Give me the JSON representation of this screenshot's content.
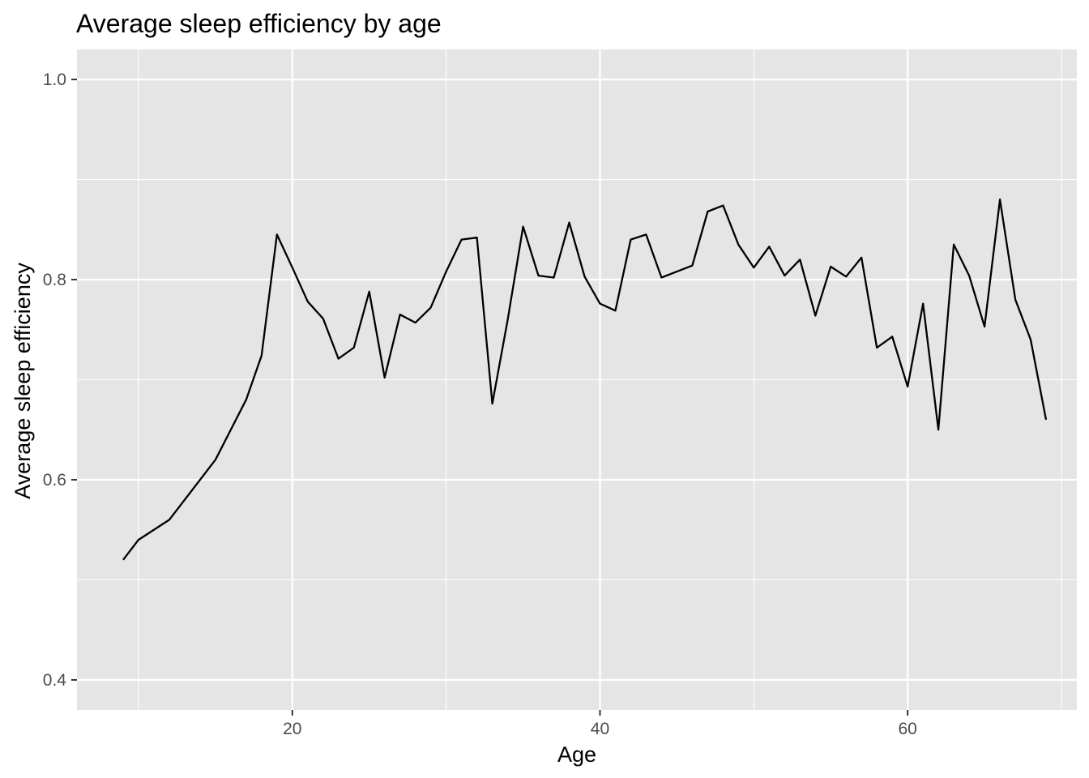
{
  "chart_data": {
    "type": "line",
    "title": "Average sleep efficiency by age",
    "xlabel": "Age",
    "ylabel": "Average sleep efficiency",
    "xlim": [
      6,
      71
    ],
    "ylim": [
      0.37,
      1.03
    ],
    "x_ticks": [
      20,
      40,
      60
    ],
    "x_tick_labels": [
      "20",
      "40",
      "60"
    ],
    "x_minor_ticks": [
      10,
      30,
      50,
      70
    ],
    "y_ticks": [
      0.4,
      0.6,
      0.8,
      1.0
    ],
    "y_tick_labels": [
      "0.4",
      "0.6",
      "0.8",
      "1.0"
    ],
    "y_minor_ticks": [
      0.5,
      0.7,
      0.9
    ],
    "grid": true,
    "legend": "none",
    "colors": {
      "panel": "#e5e5e5",
      "grid": "#ffffff",
      "line": "#000000"
    },
    "series": [
      {
        "x": [
          9,
          10,
          12,
          15,
          17,
          18,
          19,
          20,
          21,
          22,
          23,
          24,
          25,
          26,
          27,
          28,
          29,
          30,
          31,
          32,
          33,
          34,
          35,
          36,
          37,
          38,
          39,
          40,
          41,
          42,
          43,
          44,
          45,
          46,
          47,
          48,
          49,
          50,
          51,
          52,
          53,
          54,
          55,
          56,
          57,
          58,
          59,
          60,
          61,
          62,
          63,
          64,
          65,
          66,
          67,
          68,
          69
        ],
        "values": [
          0.52,
          0.54,
          0.56,
          0.62,
          0.68,
          0.724,
          0.845,
          0.812,
          0.778,
          0.761,
          0.721,
          0.732,
          0.788,
          0.702,
          0.765,
          0.757,
          0.772,
          0.808,
          0.84,
          0.842,
          0.676,
          0.76,
          0.853,
          0.804,
          0.802,
          0.857,
          0.803,
          0.776,
          0.769,
          0.84,
          0.845,
          0.802,
          0.808,
          0.814,
          0.868,
          0.874,
          0.835,
          0.812,
          0.833,
          0.804,
          0.82,
          0.764,
          0.813,
          0.803,
          0.822,
          0.732,
          0.743,
          0.693,
          0.776,
          0.65,
          0.835,
          0.804,
          0.753,
          0.88,
          0.78,
          0.74,
          0.66
        ]
      }
    ]
  }
}
